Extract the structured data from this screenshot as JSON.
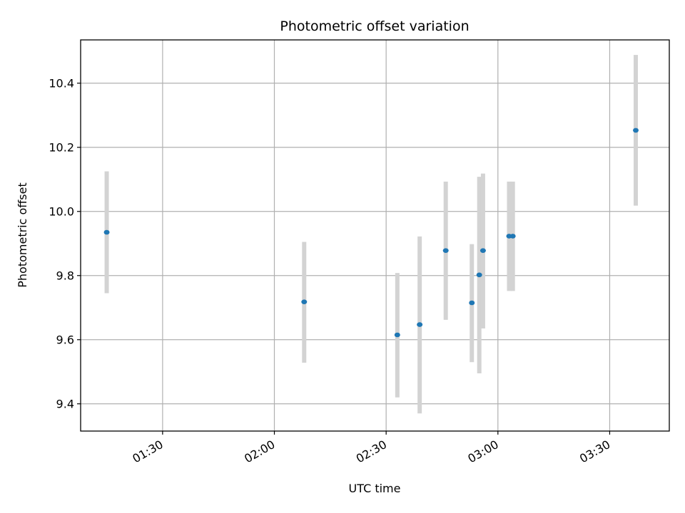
{
  "chart_data": {
    "type": "scatter",
    "title": "Photometric offset variation",
    "xlabel": "UTC time",
    "ylabel": "Photometric offset",
    "x_ticks": [
      "01:30",
      "02:00",
      "02:30",
      "03:00",
      "03:30"
    ],
    "y_ticks": [
      "9.4",
      "9.6",
      "9.8",
      "10.0",
      "10.2",
      "10.4"
    ],
    "xlim": [
      "01:08",
      "03:46"
    ],
    "ylim": [
      9.315,
      10.535
    ],
    "grid": true,
    "point_color": "#1f77b4",
    "errorbar_color": "#d3d3d3",
    "points": [
      {
        "x": "01:15",
        "y": 9.935,
        "err_low": 9.745,
        "err_high": 10.125
      },
      {
        "x": "02:08",
        "y": 9.718,
        "err_low": 9.528,
        "err_high": 9.905
      },
      {
        "x": "02:33",
        "y": 9.615,
        "err_low": 9.42,
        "err_high": 9.808
      },
      {
        "x": "02:39",
        "y": 9.647,
        "err_low": 9.37,
        "err_high": 9.922
      },
      {
        "x": "02:46",
        "y": 9.878,
        "err_low": 9.662,
        "err_high": 10.093
      },
      {
        "x": "02:53",
        "y": 9.715,
        "err_low": 9.53,
        "err_high": 9.898
      },
      {
        "x": "02:55",
        "y": 9.802,
        "err_low": 9.495,
        "err_high": 10.108
      },
      {
        "x": "02:56",
        "y": 9.878,
        "err_low": 9.635,
        "err_high": 10.118
      },
      {
        "x": "03:03",
        "y": 9.923,
        "err_low": 9.752,
        "err_high": 10.093
      },
      {
        "x": "03:04",
        "y": 9.923,
        "err_low": 9.752,
        "err_high": 10.093
      },
      {
        "x": "03:37",
        "y": 10.253,
        "err_low": 10.018,
        "err_high": 10.488
      }
    ]
  }
}
